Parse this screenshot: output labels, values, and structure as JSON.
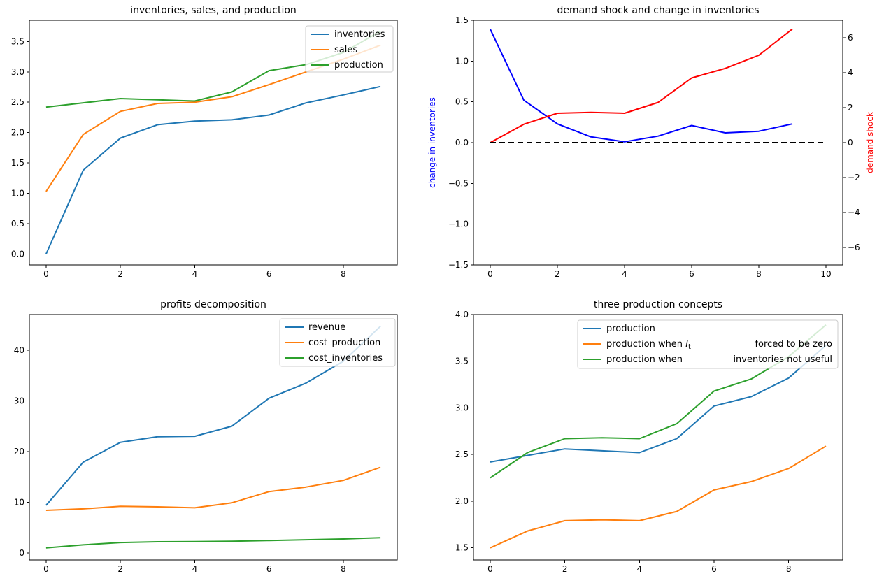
{
  "figure": {
    "background": "#ffffff"
  },
  "colors": {
    "mpl_blue": "#1f77b4",
    "mpl_orange": "#ff7f0e",
    "mpl_green": "#2ca02c",
    "pure_blue": "#0000ff",
    "pure_red": "#ff0000",
    "black": "#000000",
    "legend_border": "#cccccc"
  },
  "chart_data": [
    {
      "type": "line",
      "title": "inventories, sales, and production",
      "x": [
        0,
        1,
        2,
        3,
        4,
        5,
        6,
        7,
        8,
        9
      ],
      "xlim": [
        -0.45,
        9.45
      ],
      "ylim": [
        -0.18,
        3.85
      ],
      "xtick_values": [
        0,
        2,
        4,
        6,
        8
      ],
      "xtick_labels": [
        "0",
        "2",
        "4",
        "6",
        "8"
      ],
      "ytick_values": [
        0,
        0.5,
        1,
        1.5,
        2,
        2.5,
        3,
        3.5
      ],
      "ytick_labels": [
        "0.0",
        "0.5",
        "1.0",
        "1.5",
        "2.0",
        "2.5",
        "3.0",
        "3.5"
      ],
      "series": [
        {
          "name": "inventories",
          "color": "#1f77b4",
          "values": [
            0.0,
            1.38,
            1.91,
            2.13,
            2.19,
            2.21,
            2.29,
            2.49,
            2.62,
            2.76
          ]
        },
        {
          "name": "sales",
          "color": "#ff7f0e",
          "values": [
            1.03,
            1.97,
            2.35,
            2.48,
            2.5,
            2.59,
            2.79,
            3.0,
            3.21,
            3.44
          ]
        },
        {
          "name": "production",
          "color": "#2ca02c",
          "values": [
            2.42,
            2.49,
            2.56,
            2.54,
            2.52,
            2.67,
            3.02,
            3.12,
            3.32,
            3.67
          ]
        }
      ],
      "legend": {
        "loc": "upper right",
        "entries": [
          {
            "label": "inventories",
            "color": "#1f77b4"
          },
          {
            "label": "sales",
            "color": "#ff7f0e"
          },
          {
            "label": "production",
            "color": "#2ca02c"
          }
        ]
      }
    },
    {
      "type": "line",
      "title": "demand shock and change in inventories",
      "ylabel_left": "change in inventories",
      "ylabel_right": "demand shock",
      "ylabel_left_color": "#0000ff",
      "ylabel_right_color": "#ff0000",
      "x": [
        0,
        1,
        2,
        3,
        4,
        5,
        6,
        7,
        8,
        9
      ],
      "xlim": [
        -0.5,
        10.5
      ],
      "ylim": [
        -1.5,
        1.5
      ],
      "ylim_right": [
        -7,
        7
      ],
      "xtick_values": [
        0,
        2,
        4,
        6,
        8,
        10
      ],
      "xtick_labels": [
        "0",
        "2",
        "4",
        "6",
        "8",
        "10"
      ],
      "ytick_values": [
        -1.5,
        -1,
        -0.5,
        0,
        0.5,
        1,
        1.5
      ],
      "ytick_labels": [
        "−1.5",
        "−1.0",
        "−0.5",
        "0.0",
        "0.5",
        "1.0",
        "1.5"
      ],
      "ytick_right_values": [
        -6,
        -4,
        -2,
        0,
        2,
        4,
        6
      ],
      "ytick_right_labels": [
        "−6",
        "−4",
        "−2",
        "0",
        "2",
        "4",
        "6"
      ],
      "series": [
        {
          "name": "change in inventories",
          "color": "#0000ff",
          "values": [
            1.39,
            0.52,
            0.23,
            0.07,
            0.01,
            0.08,
            0.21,
            0.12,
            0.14,
            0.23
          ]
        },
        {
          "name": "demand shock",
          "axis": "right",
          "color": "#ff0000",
          "values": [
            0.0,
            1.05,
            1.68,
            1.73,
            1.68,
            2.3,
            3.7,
            4.25,
            5.0,
            6.5
          ]
        },
        {
          "name": "zero line",
          "color": "#000000",
          "dash": "8 5",
          "x": [
            0,
            10
          ],
          "values": [
            0,
            0
          ]
        }
      ]
    },
    {
      "type": "line",
      "title": "profits decomposition",
      "x": [
        0,
        1,
        2,
        3,
        4,
        5,
        6,
        7,
        8,
        9
      ],
      "xlim": [
        -0.45,
        9.45
      ],
      "ylim": [
        -1.38,
        47.0
      ],
      "xtick_values": [
        0,
        2,
        4,
        6,
        8
      ],
      "xtick_labels": [
        "0",
        "2",
        "4",
        "6",
        "8"
      ],
      "ytick_values": [
        0,
        10,
        20,
        30,
        40
      ],
      "ytick_labels": [
        "0",
        "10",
        "20",
        "30",
        "40"
      ],
      "series": [
        {
          "name": "revenue",
          "color": "#1f77b4",
          "values": [
            9.4,
            17.9,
            21.8,
            22.9,
            23.0,
            25.0,
            30.5,
            33.5,
            37.8,
            44.7
          ]
        },
        {
          "name": "cost_production",
          "color": "#ff7f0e",
          "values": [
            8.4,
            8.7,
            9.2,
            9.1,
            8.9,
            9.9,
            12.1,
            13.0,
            14.3,
            16.9
          ]
        },
        {
          "name": "cost_inventories",
          "color": "#2ca02c",
          "values": [
            1.0,
            1.6,
            2.05,
            2.2,
            2.25,
            2.3,
            2.45,
            2.6,
            2.75,
            3.0
          ]
        }
      ],
      "legend": {
        "loc": "upper right",
        "entries": [
          {
            "label": "revenue",
            "color": "#1f77b4"
          },
          {
            "label": "cost_production",
            "color": "#ff7f0e"
          },
          {
            "label": "cost_inventories",
            "color": "#2ca02c"
          }
        ]
      }
    },
    {
      "type": "line",
      "title": "three production concepts",
      "x": [
        0,
        1,
        2,
        3,
        4,
        5,
        6,
        7,
        8,
        9
      ],
      "xlim": [
        -0.45,
        9.45
      ],
      "ylim": [
        1.37,
        4.0
      ],
      "xtick_values": [
        0,
        2,
        4,
        6,
        8
      ],
      "xtick_labels": [
        "0",
        "2",
        "4",
        "6",
        "8"
      ],
      "ytick_values": [
        1.5,
        2,
        2.5,
        3,
        3.5,
        4
      ],
      "ytick_labels": [
        "1.5",
        "2.0",
        "2.5",
        "3.0",
        "3.5",
        "4.0"
      ],
      "series": [
        {
          "name": "production",
          "color": "#1f77b4",
          "values": [
            2.42,
            2.49,
            2.56,
            2.54,
            2.52,
            2.67,
            3.02,
            3.12,
            3.32,
            3.67
          ]
        },
        {
          "name": "production when I_t forced to be zero",
          "color": "#ff7f0e",
          "values": [
            1.5,
            1.68,
            1.79,
            1.8,
            1.79,
            1.89,
            2.12,
            2.21,
            2.35,
            2.59
          ]
        },
        {
          "name": "production when inventories not useful",
          "color": "#2ca02c",
          "values": [
            2.25,
            2.52,
            2.67,
            2.68,
            2.67,
            2.83,
            3.18,
            3.31,
            3.55,
            3.89
          ]
        }
      ],
      "legend": {
        "loc": "upper right",
        "entries": [
          {
            "label": "production",
            "color": "#1f77b4"
          },
          {
            "label": "production when $I_t$",
            "label_right": "forced to be zero",
            "color": "#ff7f0e"
          },
          {
            "label": "production when",
            "label_right": "inventories not useful",
            "color": "#2ca02c"
          }
        ]
      }
    }
  ]
}
